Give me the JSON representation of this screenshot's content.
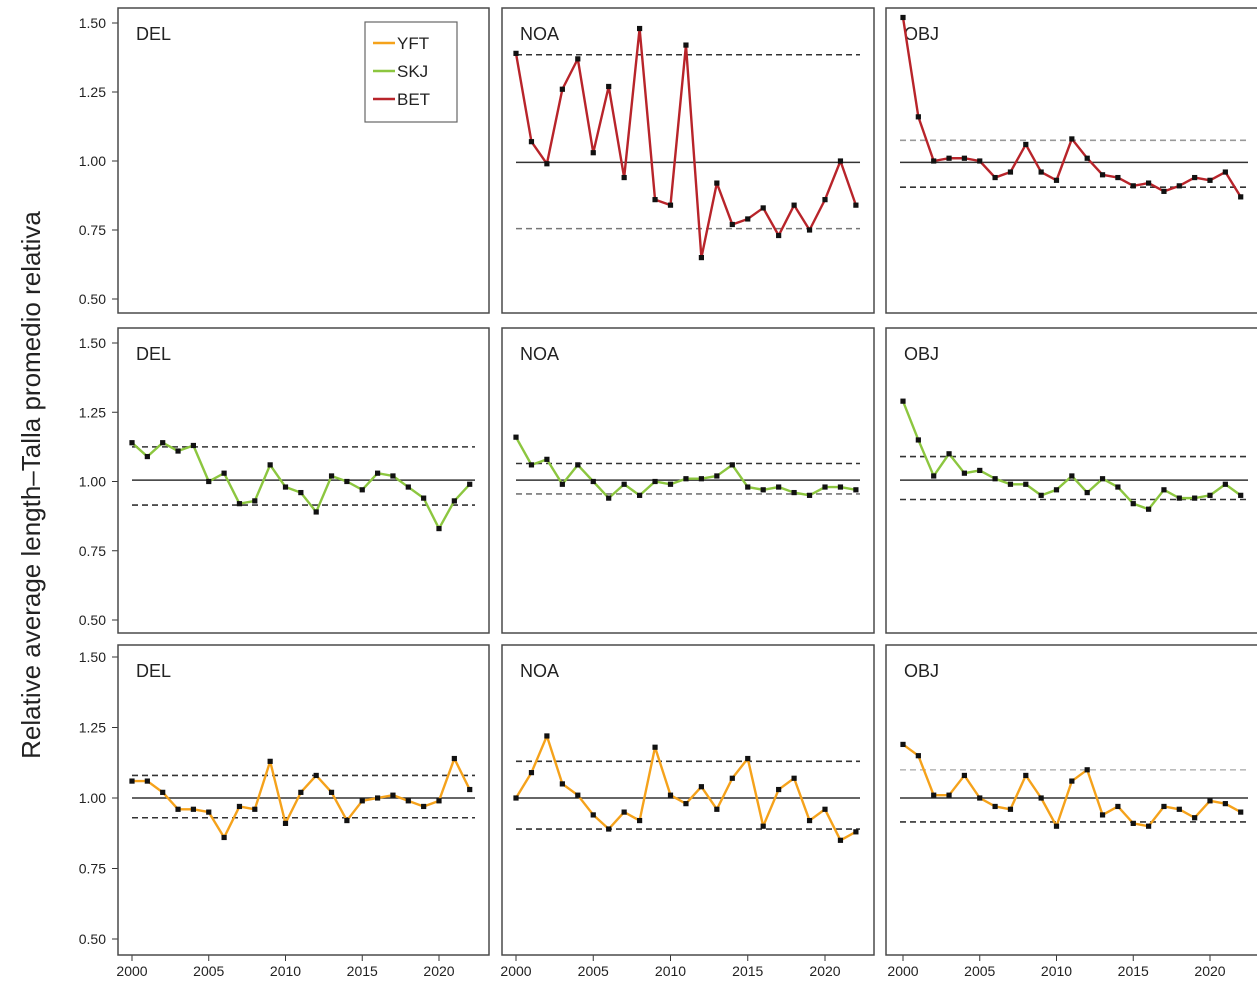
{
  "chart_data": {
    "type": "line",
    "ylabel": "Relative average length–Talla promedio relativa",
    "ylim": [
      0.5,
      1.5
    ],
    "xlim": [
      2000,
      2022
    ],
    "y_ticks": [
      "0.50",
      "0.75",
      "1.00",
      "1.25",
      "1.50"
    ],
    "x_ticks": [
      "2000",
      "2005",
      "2010",
      "2015",
      "2020"
    ],
    "legend": {
      "placement": "top-right of first panel",
      "entries": [
        {
          "name": "YFT",
          "color": "#f5a21b"
        },
        {
          "name": "SKJ",
          "color": "#8cc63f"
        },
        {
          "name": "BET",
          "color": "#b8242a"
        }
      ]
    },
    "grid": false,
    "panels": [
      {
        "species": "BET",
        "label": "DEL",
        "color": "#b8242a",
        "years": [],
        "values": [],
        "mean": null,
        "lower": null,
        "upper": null
      },
      {
        "species": "BET",
        "label": "NOA",
        "color": "#b8242a",
        "years": [
          2000,
          2001,
          2002,
          2003,
          2004,
          2005,
          2006,
          2007,
          2008,
          2009,
          2010,
          2011,
          2012,
          2013,
          2014,
          2015,
          2016,
          2017,
          2018,
          2019,
          2020,
          2021,
          2022
        ],
        "values": [
          1.39,
          1.07,
          0.99,
          1.26,
          1.37,
          1.03,
          1.27,
          0.94,
          1.48,
          0.86,
          0.84,
          1.42,
          0.65,
          0.92,
          0.77,
          0.79,
          0.83,
          0.73,
          0.84,
          0.75,
          0.86,
          1.0,
          0.84
        ],
        "mean": 0.995,
        "lower": 0.755,
        "upper": 1.385
      },
      {
        "species": "BET",
        "label": "OBJ",
        "color": "#b8242a",
        "years": [
          2000,
          2001,
          2002,
          2003,
          2004,
          2005,
          2006,
          2007,
          2008,
          2009,
          2010,
          2011,
          2012,
          2013,
          2014,
          2015,
          2016,
          2017,
          2018,
          2019,
          2020,
          2021,
          2022
        ],
        "values": [
          1.52,
          1.16,
          1.0,
          1.01,
          1.01,
          1.0,
          0.94,
          0.96,
          1.06,
          0.96,
          0.93,
          1.08,
          1.01,
          0.95,
          0.94,
          0.91,
          0.92,
          0.89,
          0.91,
          0.94,
          0.93,
          0.96,
          0.87
        ],
        "mean": 0.995,
        "lower": 0.905,
        "upper": 1.075
      },
      {
        "species": "SKJ",
        "label": "DEL",
        "color": "#8cc63f",
        "years": [
          2000,
          2001,
          2002,
          2003,
          2004,
          2005,
          2006,
          2007,
          2008,
          2009,
          2010,
          2011,
          2012,
          2013,
          2014,
          2015,
          2016,
          2017,
          2018,
          2019,
          2020,
          2021,
          2022
        ],
        "values": [
          1.14,
          1.09,
          1.14,
          1.11,
          1.13,
          1.0,
          1.03,
          0.92,
          0.93,
          1.06,
          0.98,
          0.96,
          0.89,
          1.02,
          1.0,
          0.97,
          1.03,
          1.02,
          0.98,
          0.94,
          0.83,
          0.93,
          0.99
        ],
        "mean": 1.005,
        "lower": 0.915,
        "upper": 1.125
      },
      {
        "species": "SKJ",
        "label": "NOA",
        "color": "#8cc63f",
        "years": [
          2000,
          2001,
          2002,
          2003,
          2004,
          2005,
          2006,
          2007,
          2008,
          2009,
          2010,
          2011,
          2012,
          2013,
          2014,
          2015,
          2016,
          2017,
          2018,
          2019,
          2020,
          2021,
          2022
        ],
        "values": [
          1.16,
          1.06,
          1.08,
          0.99,
          1.06,
          1.0,
          0.94,
          0.99,
          0.95,
          1.0,
          0.99,
          1.01,
          1.01,
          1.02,
          1.06,
          0.98,
          0.97,
          0.98,
          0.96,
          0.95,
          0.98,
          0.98,
          0.97
        ],
        "mean": 1.005,
        "lower": 0.955,
        "upper": 1.065
      },
      {
        "species": "SKJ",
        "label": "OBJ",
        "color": "#8cc63f",
        "years": [
          2000,
          2001,
          2002,
          2003,
          2004,
          2005,
          2006,
          2007,
          2008,
          2009,
          2010,
          2011,
          2012,
          2013,
          2014,
          2015,
          2016,
          2017,
          2018,
          2019,
          2020,
          2021,
          2022
        ],
        "values": [
          1.29,
          1.15,
          1.02,
          1.1,
          1.03,
          1.04,
          1.01,
          0.99,
          0.99,
          0.95,
          0.97,
          1.02,
          0.96,
          1.01,
          0.98,
          0.92,
          0.9,
          0.97,
          0.94,
          0.94,
          0.95,
          0.99,
          0.95
        ],
        "mean": 1.005,
        "lower": 0.935,
        "upper": 1.09
      },
      {
        "species": "YFT",
        "label": "DEL",
        "color": "#f5a21b",
        "years": [
          2000,
          2001,
          2002,
          2003,
          2004,
          2005,
          2006,
          2007,
          2008,
          2009,
          2010,
          2011,
          2012,
          2013,
          2014,
          2015,
          2016,
          2017,
          2018,
          2019,
          2020,
          2021,
          2022
        ],
        "values": [
          1.06,
          1.06,
          1.02,
          0.96,
          0.96,
          0.95,
          0.86,
          0.97,
          0.96,
          1.13,
          0.91,
          1.02,
          1.08,
          1.02,
          0.92,
          0.99,
          1.0,
          1.01,
          0.99,
          0.97,
          0.99,
          1.14,
          1.03
        ],
        "mean": 1.0,
        "lower": 0.93,
        "upper": 1.08
      },
      {
        "species": "YFT",
        "label": "NOA",
        "color": "#f5a21b",
        "years": [
          2000,
          2001,
          2002,
          2003,
          2004,
          2005,
          2006,
          2007,
          2008,
          2009,
          2010,
          2011,
          2012,
          2013,
          2014,
          2015,
          2016,
          2017,
          2018,
          2019,
          2020,
          2021,
          2022
        ],
        "values": [
          1.0,
          1.09,
          1.22,
          1.05,
          1.01,
          0.94,
          0.89,
          0.95,
          0.92,
          1.18,
          1.01,
          0.98,
          1.04,
          0.96,
          1.07,
          1.14,
          0.9,
          1.03,
          1.07,
          0.92,
          0.96,
          0.85,
          0.88
        ],
        "mean": 1.0,
        "lower": 0.89,
        "upper": 1.13
      },
      {
        "species": "YFT",
        "label": "OBJ",
        "color": "#f5a21b",
        "years": [
          2000,
          2001,
          2002,
          2003,
          2004,
          2005,
          2006,
          2007,
          2008,
          2009,
          2010,
          2011,
          2012,
          2013,
          2014,
          2015,
          2016,
          2017,
          2018,
          2019,
          2020,
          2021,
          2022
        ],
        "values": [
          1.19,
          1.15,
          1.01,
          1.01,
          1.08,
          1.0,
          0.97,
          0.96,
          1.08,
          1.0,
          0.9,
          1.06,
          1.1,
          0.94,
          0.97,
          0.91,
          0.9,
          0.97,
          0.96,
          0.93,
          0.99,
          0.98,
          0.95
        ],
        "mean": 1.0,
        "lower": 0.915,
        "upper": 1.1
      }
    ]
  }
}
